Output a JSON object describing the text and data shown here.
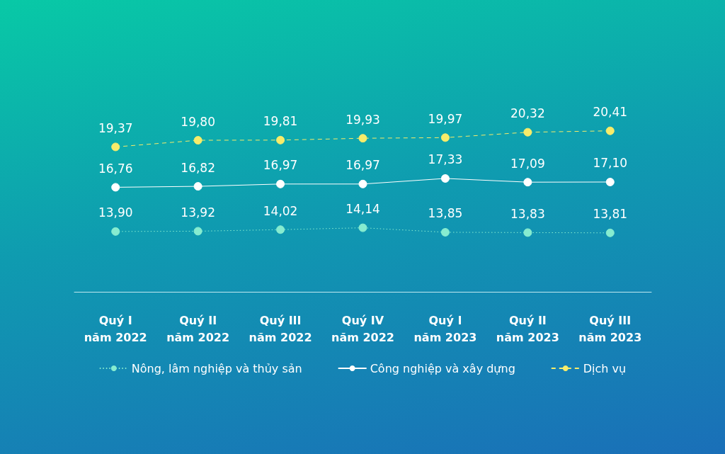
{
  "chart_data": {
    "type": "line",
    "categories": [
      "Quý I\nnăm 2022",
      "Quý II\nnăm 2022",
      "Quý III\nnăm 2022",
      "Quý IV\nnăm 2022",
      "Quý I\nnăm 2023",
      "Quý II\nnăm 2023",
      "Quý III\nnăm 2023"
    ],
    "series": [
      {
        "name": "Nông, lâm nghiệp và thủy sản",
        "color": "#86ecd0",
        "line_style": "dotted",
        "values": [
          13.9,
          13.92,
          14.02,
          14.14,
          13.85,
          13.83,
          13.81
        ],
        "value_labels": [
          "13,90",
          "13,92",
          "14,02",
          "14,14",
          "13,85",
          "13,83",
          "13,81"
        ]
      },
      {
        "name": "Công nghiệp và xây dựng",
        "color": "#ffffff",
        "line_style": "solid",
        "values": [
          16.76,
          16.82,
          16.97,
          16.97,
          17.33,
          17.09,
          17.1
        ],
        "value_labels": [
          "16,76",
          "16,82",
          "16,97",
          "16,97",
          "17,33",
          "17,09",
          "17,10"
        ]
      },
      {
        "name": "Dịch vụ",
        "color": "#f7ec6a",
        "line_style": "dashed",
        "values": [
          19.37,
          19.8,
          19.81,
          19.93,
          19.97,
          20.32,
          20.41
        ],
        "value_labels": [
          "19,37",
          "19,80",
          "19,81",
          "19,93",
          "19,97",
          "20,32",
          "20,41"
        ]
      }
    ],
    "marker": "circle",
    "legend": "bottom",
    "tick_labels": "x"
  }
}
